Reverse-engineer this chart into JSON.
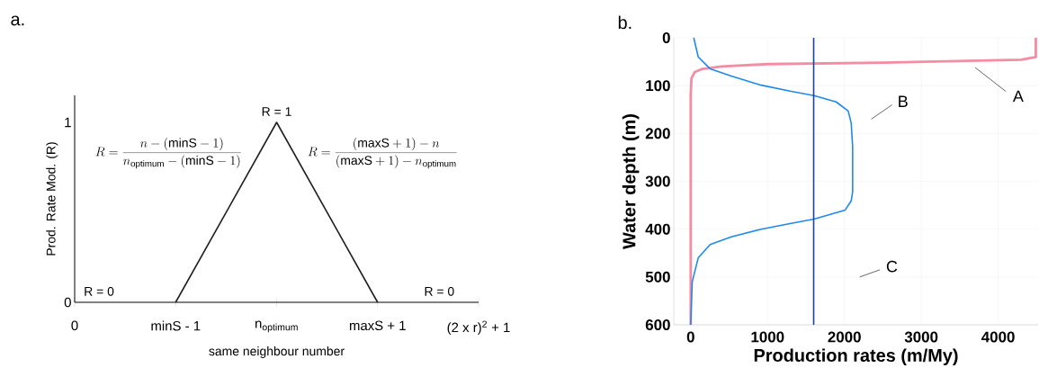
{
  "chart_data": [
    {
      "type": "line",
      "title": "a.",
      "xlabel": "same neighbour number",
      "ylabel": "Prod. Rate Mod. (R)",
      "categories": [
        "0",
        "minS - 1",
        "n$_{optimum}$",
        "maxS + 1",
        "(2 x r)$^{2}$ + 1"
      ],
      "series": [
        {
          "color": "#231f20",
          "values": [
            null,
            0,
            1,
            0,
            null
          ]
        }
      ],
      "ylim": [
        0,
        1.15
      ],
      "yticks": [
        0,
        1
      ],
      "annotations": [
        "R = 0",
        "R = 1",
        "R = 0",
        "R = \\frac{n - (\\mathrm{minS} - 1)}{n_{\\mathrm{optimum}} - (\\mathrm{minS} - 1)}",
        "R = \\frac{(\\mathrm{maxS} + 1) - n}{(\\mathrm{maxS} + 1) - n_{\\mathrm{optimum}}}"
      ]
    },
    {
      "type": "line",
      "title": "b.",
      "xlabel": "Production rates (m/My)",
      "ylabel": "Water depth (m)",
      "series": [
        {
          "name": "A",
          "color": "#f48ca4",
          "x": [
            4490,
            4490,
            4300,
            2500,
            1000,
            400,
            150,
            50,
            10,
            0,
            0
          ],
          "values": [
            0,
            40,
            46,
            52,
            55,
            60,
            65,
            72,
            85,
            120,
            600
          ]
        },
        {
          "name": "B",
          "color": "#1e88ee",
          "x": [
            40,
            98,
            254,
            527,
            917,
            1307,
            1604,
            1893,
            2049,
            2088,
            2107,
            2107,
            2088,
            2010,
            1604,
            1307,
            917,
            527,
            254,
            98,
            20,
            0
          ],
          "values": [
            0,
            40,
            65,
            80,
            99,
            112,
            121,
            134,
            153,
            178,
            228,
            322,
            341,
            360,
            379,
            388,
            400,
            416,
            432,
            460,
            510,
            600
          ]
        },
        {
          "name": "C",
          "color": "#1f3fa8",
          "x": [
            1600,
            1600
          ],
          "values": [
            0,
            600
          ]
        }
      ],
      "xlim": [
        -220,
        4520
      ],
      "xticks": [
        0,
        1000,
        2000,
        3000,
        4000
      ],
      "ylim": [
        600,
        0
      ],
      "yticks": [
        0,
        100,
        200,
        300,
        400,
        500,
        600
      ],
      "grid": true
    }
  ]
}
